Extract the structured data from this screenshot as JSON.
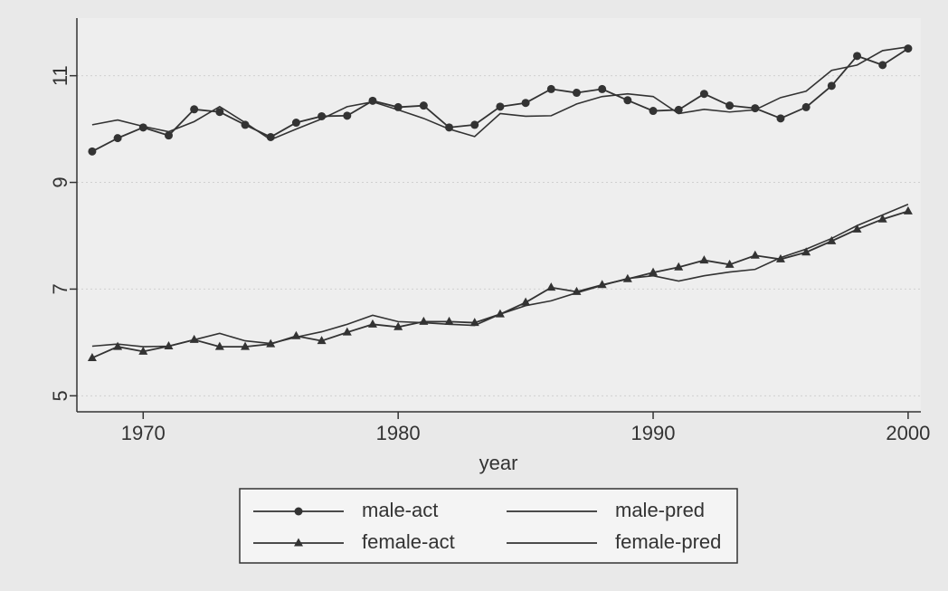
{
  "chart_data": {
    "type": "line",
    "x": [
      1968,
      1969,
      1970,
      1971,
      1972,
      1973,
      1974,
      1975,
      1976,
      1977,
      1978,
      1979,
      1980,
      1981,
      1982,
      1983,
      1984,
      1985,
      1986,
      1987,
      1988,
      1989,
      1990,
      1991,
      1992,
      1993,
      1994,
      1995,
      1996,
      1997,
      1998,
      1999,
      2000
    ],
    "xlabel": "year",
    "xlim": [
      1967.4,
      2000.5
    ],
    "xticks": [
      1970,
      1980,
      1990,
      2000
    ],
    "ylim": [
      4.7,
      12.08
    ],
    "yticks": [
      5,
      7,
      9,
      11
    ],
    "grid": true,
    "legend": "bottom",
    "series": [
      {
        "name": "male-act",
        "color": "#333333",
        "marker": "circle",
        "values": [
          9.58,
          9.83,
          10.03,
          9.88,
          10.37,
          10.32,
          10.08,
          9.85,
          10.12,
          10.24,
          10.25,
          10.53,
          10.41,
          10.44,
          10.03,
          10.08,
          10.42,
          10.49,
          10.75,
          10.68,
          10.75,
          10.54,
          10.34,
          10.36,
          10.66,
          10.44,
          10.39,
          10.2,
          10.41,
          10.81,
          11.37,
          11.2,
          11.51
        ]
      },
      {
        "name": "male-pred",
        "color": "#333333",
        "marker": "none",
        "values": [
          10.08,
          10.17,
          10.05,
          9.95,
          10.14,
          10.42,
          10.12,
          9.8,
          10.0,
          10.19,
          10.42,
          10.51,
          10.36,
          10.2,
          10.0,
          9.86,
          10.29,
          10.24,
          10.25,
          10.47,
          10.61,
          10.66,
          10.61,
          10.29,
          10.37,
          10.32,
          10.36,
          10.59,
          10.71,
          11.1,
          11.2,
          11.47,
          11.54
        ]
      },
      {
        "name": "female-act",
        "color": "#333333",
        "marker": "triangle",
        "values": [
          5.71,
          5.92,
          5.83,
          5.93,
          6.05,
          5.92,
          5.92,
          5.97,
          6.12,
          6.03,
          6.19,
          6.34,
          6.29,
          6.39,
          6.39,
          6.37,
          6.53,
          6.75,
          7.03,
          6.95,
          7.08,
          7.19,
          7.31,
          7.41,
          7.54,
          7.46,
          7.63,
          7.56,
          7.69,
          7.9,
          8.12,
          8.31,
          8.46
        ]
      },
      {
        "name": "female-pred",
        "color": "#333333",
        "marker": "none",
        "values": [
          5.93,
          5.97,
          5.92,
          5.93,
          6.05,
          6.17,
          6.03,
          5.98,
          6.1,
          6.2,
          6.34,
          6.51,
          6.39,
          6.37,
          6.34,
          6.32,
          6.53,
          6.69,
          6.78,
          6.93,
          7.07,
          7.2,
          7.25,
          7.15,
          7.25,
          7.32,
          7.37,
          7.59,
          7.75,
          7.95,
          8.19,
          8.39,
          8.59
        ]
      }
    ]
  }
}
